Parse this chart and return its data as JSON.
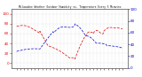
{
  "title": "Milwaukee Weather Outdoor Humidity vs. Temperature Every 5 Minutes",
  "bg_color": "#ffffff",
  "grid_color": "#bbbbbb",
  "temp_color": "#dd0000",
  "humid_color": "#0000cc",
  "temp_ylim": [
    -10,
    110
  ],
  "humid_ylim": [
    0,
    100
  ],
  "figwidth": 1.6,
  "figheight": 0.87,
  "dpi": 100
}
